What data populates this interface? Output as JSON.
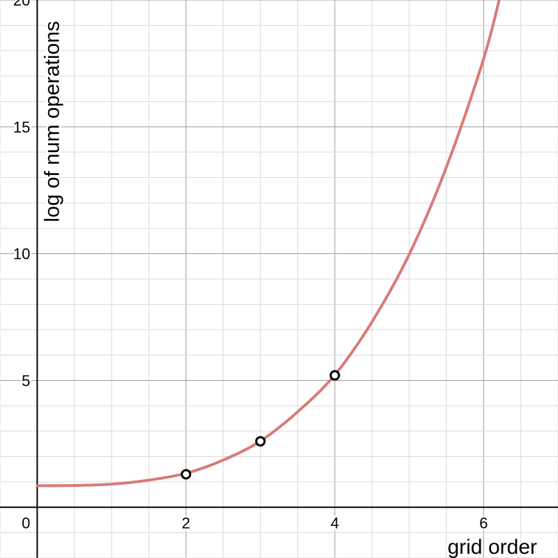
{
  "chart_data": {
    "type": "line",
    "title": "",
    "xlabel": "grid order",
    "ylabel": "log of num operations",
    "xlim": [
      -0.5,
      7
    ],
    "ylim": [
      -2,
      20
    ],
    "origin_label": "0",
    "grid": true,
    "x_ticks": [
      {
        "value": 2,
        "label": "2"
      },
      {
        "value": 4,
        "label": "4"
      },
      {
        "value": 6,
        "label": "6"
      }
    ],
    "y_ticks": [
      {
        "value": 5,
        "label": "5"
      },
      {
        "value": 10,
        "label": "10"
      },
      {
        "value": 15,
        "label": "15"
      },
      {
        "value": 20,
        "label": "20"
      }
    ],
    "curve": {
      "x": [
        0,
        0.5,
        1,
        1.5,
        2,
        2.5,
        3,
        3.5,
        4,
        4.5,
        5,
        5.5,
        6,
        6.25
      ],
      "y": [
        0.85,
        0.86,
        0.91,
        1.07,
        1.34,
        1.86,
        2.61,
        3.76,
        5.22,
        7.31,
        9.97,
        13.41,
        17.68,
        20.5
      ]
    },
    "points": [
      {
        "x": 2,
        "y": 1.3
      },
      {
        "x": 3,
        "y": 2.6
      },
      {
        "x": 4,
        "y": 5.2
      }
    ],
    "colors": {
      "curve": "#d97a7a",
      "points": "#000000"
    }
  }
}
